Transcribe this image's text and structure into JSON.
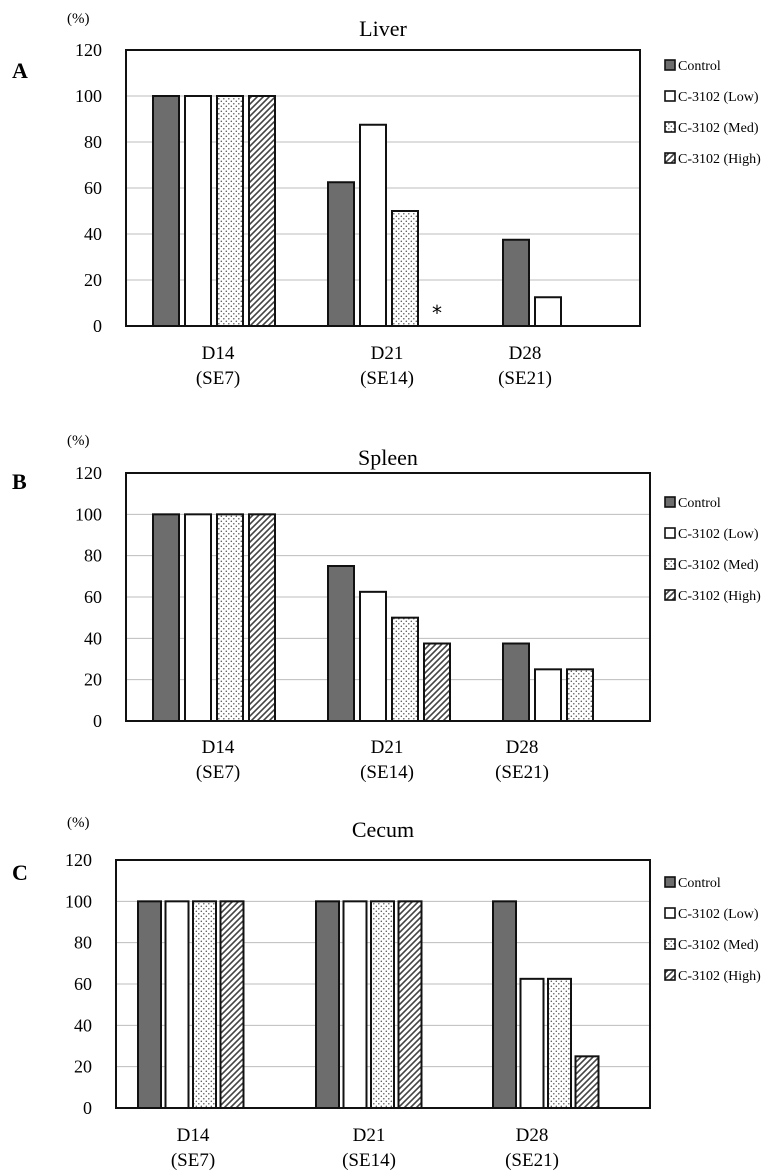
{
  "chart_data": [
    {
      "type": "bar",
      "panel": "A",
      "title": "Liver",
      "unit": "(%)",
      "ylim": [
        0,
        120
      ],
      "yticks": [
        0,
        20,
        40,
        60,
        80,
        100,
        120
      ],
      "categories": [
        {
          "label": "D14",
          "sub": "(SE7)"
        },
        {
          "label": "D21",
          "sub": "(SE14)"
        },
        {
          "label": "D28",
          "sub": "(SE21)"
        }
      ],
      "series": [
        {
          "name": "Control",
          "pattern": "dark",
          "values": [
            100,
            62.5,
            37.5
          ]
        },
        {
          "name": "C-3102 (Low)",
          "pattern": "white",
          "values": [
            100,
            87.5,
            12.5
          ]
        },
        {
          "name": "C-3102 (Med)",
          "pattern": "dots",
          "values": [
            100,
            50,
            0
          ]
        },
        {
          "name": "C-3102 (High)",
          "pattern": "hatch",
          "values": [
            100,
            0,
            0
          ]
        }
      ],
      "annotations": [
        {
          "text": "*",
          "category": 1,
          "series": 3
        }
      ],
      "grid": true,
      "legend": "right"
    },
    {
      "type": "bar",
      "panel": "B",
      "title": "Spleen",
      "unit": "(%)",
      "ylim": [
        0,
        120
      ],
      "yticks": [
        0,
        20,
        40,
        60,
        80,
        100,
        120
      ],
      "categories": [
        {
          "label": "D14",
          "sub": "(SE7)"
        },
        {
          "label": "D21",
          "sub": "(SE14)"
        },
        {
          "label": "D28",
          "sub": "(SE21)"
        }
      ],
      "series": [
        {
          "name": "Control",
          "pattern": "dark",
          "values": [
            100,
            75,
            37.5
          ]
        },
        {
          "name": "C-3102 (Low)",
          "pattern": "white",
          "values": [
            100,
            62.5,
            25
          ]
        },
        {
          "name": "C-3102 (Med)",
          "pattern": "dots",
          "values": [
            100,
            50,
            25
          ]
        },
        {
          "name": "C-3102 (High)",
          "pattern": "hatch",
          "values": [
            100,
            37.5,
            0
          ]
        }
      ],
      "annotations": [],
      "grid": true,
      "legend": "right"
    },
    {
      "type": "bar",
      "panel": "C",
      "title": "Cecum",
      "unit": "(%)",
      "ylim": [
        0,
        120
      ],
      "yticks": [
        0,
        20,
        40,
        60,
        80,
        100,
        120
      ],
      "categories": [
        {
          "label": "D14",
          "sub": "(SE7)"
        },
        {
          "label": "D21",
          "sub": "(SE14)"
        },
        {
          "label": "D28",
          "sub": "(SE21)"
        }
      ],
      "series": [
        {
          "name": "Control",
          "pattern": "dark",
          "values": [
            100,
            100,
            100
          ]
        },
        {
          "name": "C-3102 (Low)",
          "pattern": "white",
          "values": [
            100,
            100,
            62.5
          ]
        },
        {
          "name": "C-3102 (Med)",
          "pattern": "dots",
          "values": [
            100,
            100,
            62.5
          ]
        },
        {
          "name": "C-3102 (High)",
          "pattern": "hatch",
          "values": [
            100,
            100,
            25
          ]
        }
      ],
      "annotations": [],
      "grid": true,
      "legend": "right"
    }
  ]
}
